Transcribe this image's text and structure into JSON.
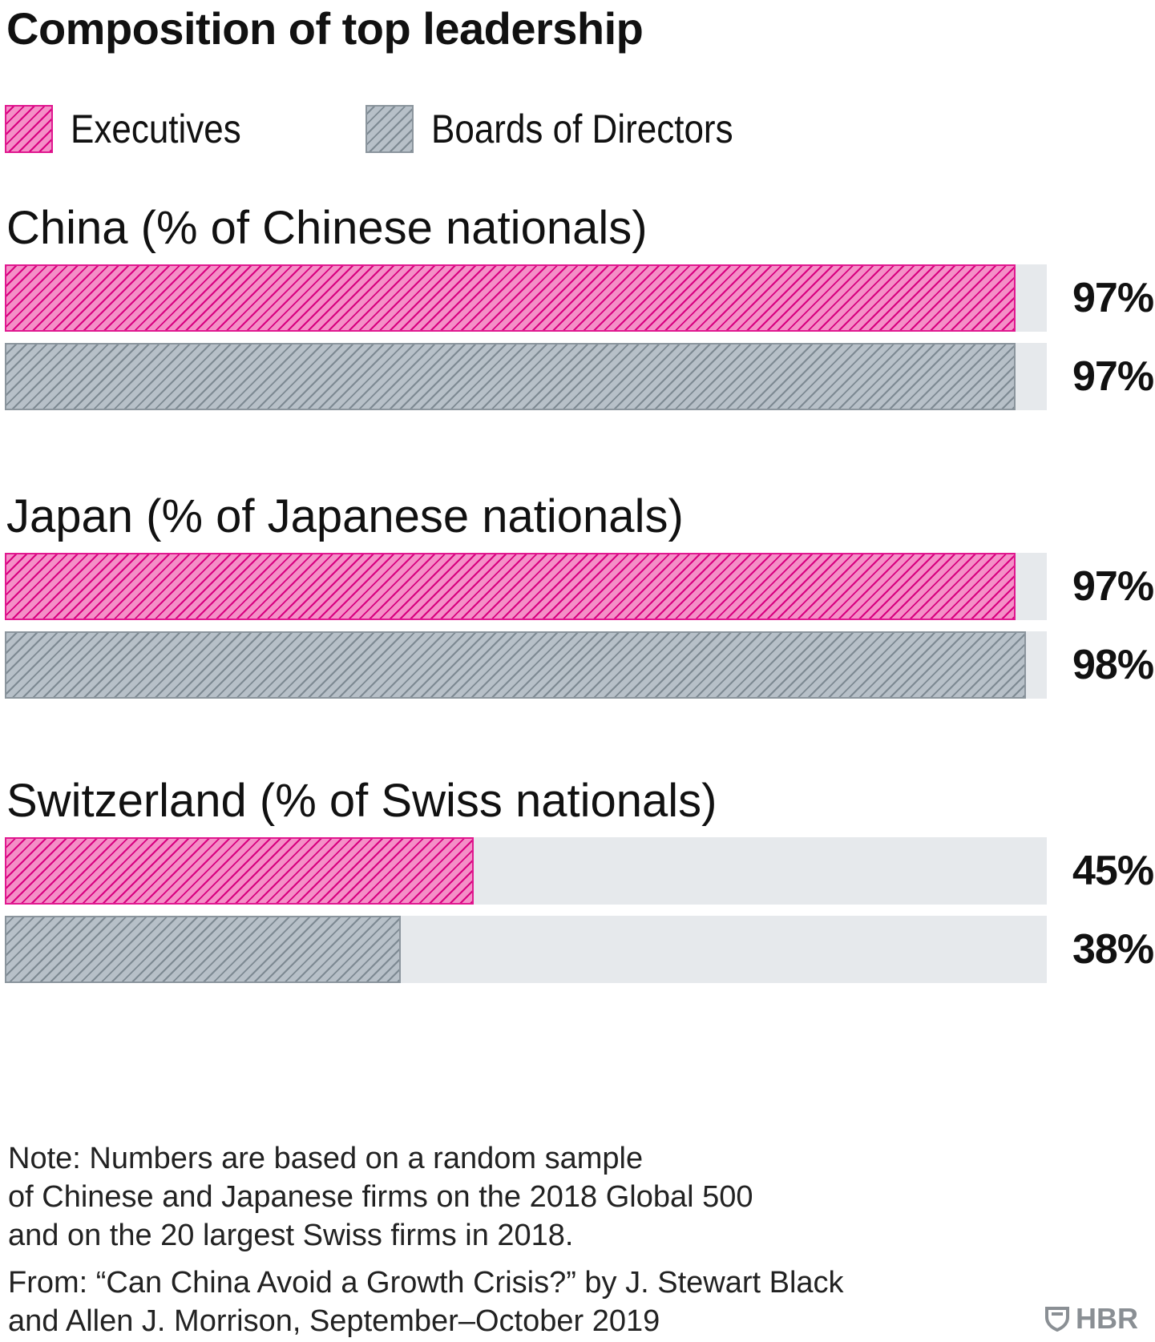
{
  "title": "Composition of top leadership",
  "legend": {
    "executives": "Executives",
    "boards": "Boards of Directors"
  },
  "colors": {
    "executives": "#f48fc7",
    "executives_stripe": "#d8007f",
    "boards": "#b7c0c8",
    "boards_stripe": "#7d8992",
    "track": "#e6e9ec"
  },
  "chart_data": {
    "type": "bar",
    "orientation": "horizontal",
    "title": "Composition of top leadership",
    "xlim": [
      0,
      100
    ],
    "legend_placement": "top-left",
    "grid": false,
    "series_names": [
      "Executives",
      "Boards of Directors"
    ],
    "groups": [
      {
        "label": "China (% of Chinese nationals)",
        "values": [
          97,
          97
        ],
        "labels": [
          "97%",
          "97%"
        ]
      },
      {
        "label": "Japan (% of Japanese nationals)",
        "values": [
          97,
          98
        ],
        "labels": [
          "97%",
          "98%"
        ]
      },
      {
        "label": "Switzerland (% of Swiss nationals)",
        "values": [
          45,
          38
        ],
        "labels": [
          "45%",
          "38%"
        ]
      }
    ]
  },
  "note": {
    "line1": "Note: Numbers are based on a random sample",
    "line2": "of Chinese and Japanese firms on the 2018 Global 500",
    "line3": "and on the 20 largest Swiss firms in 2018."
  },
  "source": {
    "line1": "From: “Can China Avoid a Growth Crisis?” by J. Stewart Black",
    "line2": "and Allen J. Morrison, September–October 2019"
  },
  "logo": {
    "text": "HBR",
    "icon": "shield-icon"
  }
}
